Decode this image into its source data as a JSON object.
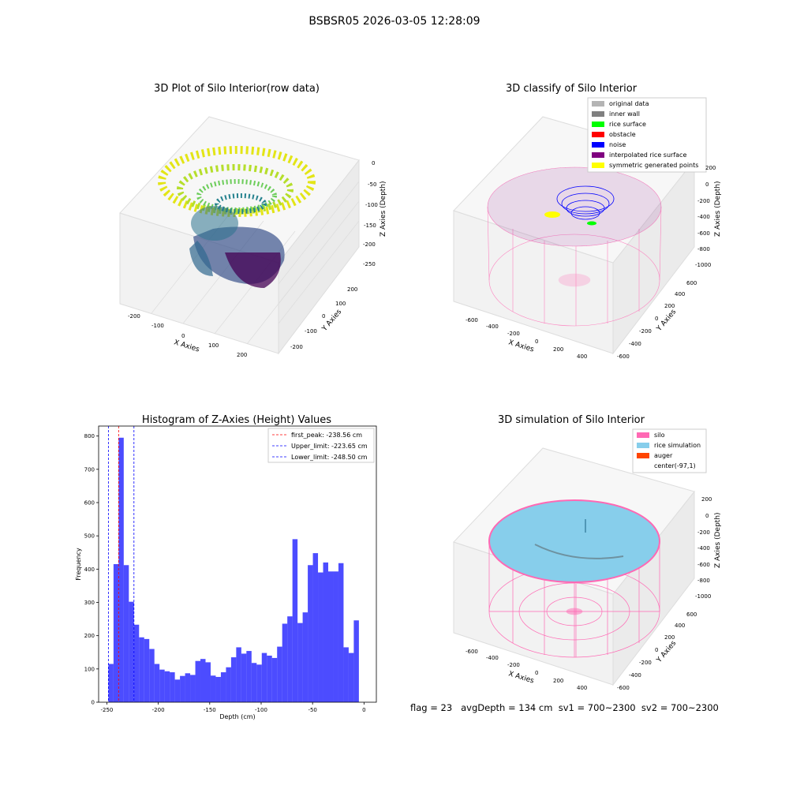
{
  "figure": {
    "suptitle": "BSBSR05 2026-03-05 12:28:09",
    "footer": "flag = 23   avgDepth = 134 cm  sv1 = 700~2300  sv2 = 700~2300"
  },
  "panel_raw": {
    "title": "3D Plot of Silo Interior(row data)",
    "xlabel": "X Axies",
    "ylabel": "Y Axies",
    "zlabel": "Z Axies (Depth)",
    "xticks": [
      "-200",
      "-100",
      "0",
      "100",
      "200"
    ],
    "yticks": [
      "-200",
      "-100",
      "0",
      "100",
      "200"
    ],
    "zticks": [
      "0",
      "-50",
      "-100",
      "-150",
      "-200",
      "-250"
    ]
  },
  "panel_classify": {
    "title": "3D classify of Silo Interior",
    "xlabel": "X Axies",
    "ylabel": "Y Axies",
    "zlabel": "Z Axies (Depth)",
    "xticks": [
      "-600",
      "-400",
      "-200",
      "0",
      "200",
      "400"
    ],
    "yticks": [
      "-600",
      "-400",
      "-200",
      "0",
      "200",
      "400",
      "600"
    ],
    "zticks": [
      "200",
      "0",
      "-200",
      "-400",
      "-600",
      "-800",
      "-1000"
    ],
    "legend": [
      {
        "label": "original data",
        "color": "#b4b4b4"
      },
      {
        "label": "inner wall",
        "color": "#808080"
      },
      {
        "label": "rice surface",
        "color": "#00ff00"
      },
      {
        "label": "obstacle",
        "color": "#ff0000"
      },
      {
        "label": "noise",
        "color": "#0000ff"
      },
      {
        "label": "interpolated rice surface",
        "color": "#800080"
      },
      {
        "label": "symmetric generated points",
        "color": "#ffff00"
      }
    ]
  },
  "panel_sim": {
    "title": "3D simulation of Silo Interior",
    "xlabel": "X Axies",
    "ylabel": "Y Axies",
    "zlabel": "Z Axies (Depth)",
    "xticks": [
      "-600",
      "-400",
      "-200",
      "0",
      "200",
      "400"
    ],
    "yticks": [
      "-600",
      "-400",
      "-200",
      "0",
      "200",
      "400",
      "600"
    ],
    "zticks": [
      "200",
      "0",
      "-200",
      "-400",
      "-600",
      "-800",
      "-1000"
    ],
    "legend": [
      {
        "label": "silo",
        "color": "#ff69b4"
      },
      {
        "label": "rice simulation",
        "color": "#87ceeb"
      },
      {
        "label": "auger",
        "color": "#ff4500"
      },
      {
        "label": "center(-97,1)",
        "color": "#ffffff"
      }
    ]
  },
  "chart_data": {
    "type": "bar",
    "title": "Histogram of Z-Axies (Height) Values",
    "xlabel": "Depth (cm)",
    "ylabel": "Frequency",
    "xlim": [
      -258,
      12
    ],
    "ylim": [
      0,
      830
    ],
    "xticks": [
      -250,
      -200,
      -150,
      -100,
      -50,
      0
    ],
    "yticks": [
      0,
      100,
      200,
      300,
      400,
      500,
      600,
      700,
      800
    ],
    "bar_color": "#0000ff",
    "bin_start": -248.5,
    "bin_width": 4.97,
    "values": [
      115,
      415,
      795,
      412,
      302,
      233,
      195,
      190,
      160,
      115,
      98,
      93,
      90,
      68,
      79,
      87,
      82,
      124,
      130,
      120,
      80,
      76,
      90,
      105,
      135,
      165,
      146,
      154,
      118,
      113,
      148,
      140,
      133,
      167,
      236,
      258,
      490,
      238,
      270,
      412,
      448,
      390,
      420,
      393,
      393,
      418,
      165,
      148,
      246
    ],
    "lines": [
      {
        "label": "first_peak: -238.56 cm",
        "x": -238.56,
        "color": "#ff0000"
      },
      {
        "label": "Upper_limit: -223.65 cm",
        "x": -223.65,
        "color": "#0000ff"
      },
      {
        "label": "Lower_limit: -248.50 cm",
        "x": -248.5,
        "color": "#0000ff"
      }
    ],
    "legend_position": "upper right"
  }
}
